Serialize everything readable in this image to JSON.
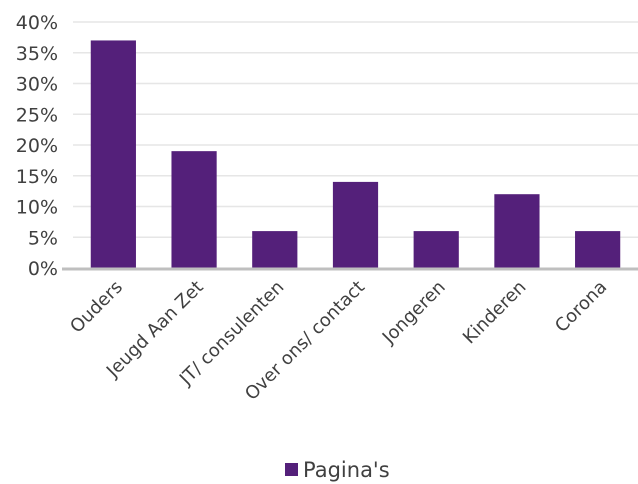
{
  "chart_data": {
    "type": "bar",
    "categories": [
      "Ouders",
      "Jeugd Aan Zet",
      "JT/ consulenten",
      "Over ons/ contact",
      "Jongeren",
      "Kinderen",
      "Corona"
    ],
    "series": [
      {
        "name": "Pagina's",
        "values": [
          0.37,
          0.19,
          0.06,
          0.14,
          0.06,
          0.12,
          0.06
        ],
        "color": "#54207a"
      }
    ],
    "yticks": [
      "0%",
      "5%",
      "10%",
      "15%",
      "20%",
      "25%",
      "30%",
      "35%",
      "40%"
    ],
    "ylim": [
      0,
      0.4
    ],
    "grid": true,
    "legend_position": "bottom",
    "gridline_color": "#e6e6e6",
    "axis_color": "#bfbfbf"
  }
}
